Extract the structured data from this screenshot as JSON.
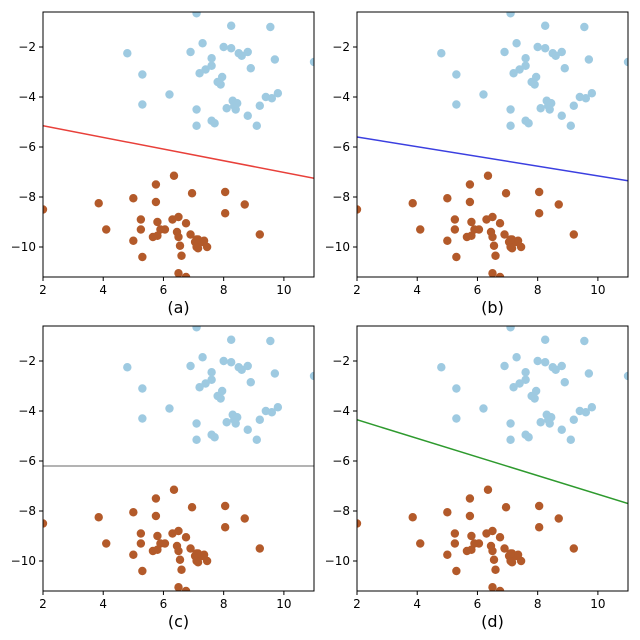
{
  "chart_data": [
    {
      "type": "scatter",
      "panel_label": "(a)",
      "xlim": [
        2,
        11
      ],
      "ylim": [
        -11.2,
        -0.6
      ],
      "xticks": [
        2,
        4,
        6,
        8,
        10
      ],
      "yticks": [
        -2,
        -4,
        -6,
        -8,
        -10
      ],
      "xtick_labels": [
        "2",
        "4",
        "6",
        "8",
        "10"
      ],
      "ytick_labels": [
        "−2",
        "−4",
        "−6",
        "−8",
        "−10"
      ],
      "grid": false,
      "boundary": {
        "x": [
          2,
          11
        ],
        "y": [
          -5.15,
          -7.25
        ],
        "color": "#e8403a"
      }
    },
    {
      "type": "scatter",
      "panel_label": "(b)",
      "xlim": [
        2,
        11
      ],
      "ylim": [
        -11.2,
        -0.6
      ],
      "xticks": [
        2,
        4,
        6,
        8,
        10
      ],
      "yticks": [
        -2,
        -4,
        -6,
        -8,
        -10
      ],
      "xtick_labels": [
        "2",
        "4",
        "6",
        "8",
        "10"
      ],
      "ytick_labels": [
        "−2",
        "−4",
        "−6",
        "−8",
        "−10"
      ],
      "grid": false,
      "boundary": {
        "x": [
          2,
          11
        ],
        "y": [
          -5.6,
          -7.35
        ],
        "color": "#3b3fe0"
      }
    },
    {
      "type": "scatter",
      "panel_label": "(c)",
      "xlim": [
        2,
        11
      ],
      "ylim": [
        -11.2,
        -0.6
      ],
      "xticks": [
        2,
        4,
        6,
        8,
        10
      ],
      "yticks": [
        -2,
        -4,
        -6,
        -8,
        -10
      ],
      "xtick_labels": [
        "2",
        "4",
        "6",
        "8",
        "10"
      ],
      "ytick_labels": [
        "−2",
        "−4",
        "−6",
        "−8",
        "−10"
      ],
      "grid": false,
      "boundary": {
        "x": [
          2,
          11
        ],
        "y": [
          -6.2,
          -6.2
        ],
        "color": "#9a9a9a"
      }
    },
    {
      "type": "scatter",
      "panel_label": "(d)",
      "xlim": [
        2,
        11
      ],
      "ylim": [
        -11.2,
        -0.6
      ],
      "xticks": [
        2,
        4,
        6,
        8,
        10
      ],
      "yticks": [
        -2,
        -4,
        -6,
        -8,
        -10
      ],
      "xtick_labels": [
        "2",
        "4",
        "6",
        "8",
        "10"
      ],
      "ytick_labels": [
        "−2",
        "−4",
        "−6",
        "−8",
        "−10"
      ],
      "grid": false,
      "boundary": {
        "x": [
          2,
          11
        ],
        "y": [
          -4.35,
          -7.7
        ],
        "color": "#2e9a2e"
      }
    }
  ],
  "shared_points": {
    "cluster_upper": {
      "color": "#9ecae1",
      "points": [
        [
          4.8,
          -2.25
        ],
        [
          5.3,
          -3.1
        ],
        [
          5.3,
          -4.3
        ],
        [
          6.2,
          -3.9
        ],
        [
          6.9,
          -2.2
        ],
        [
          7.1,
          -0.65
        ],
        [
          7.3,
          -1.85
        ],
        [
          7.2,
          -3.05
        ],
        [
          7.4,
          -2.9
        ],
        [
          7.6,
          -2.45
        ],
        [
          7.6,
          -2.75
        ],
        [
          7.8,
          -3.4
        ],
        [
          7.9,
          -3.5
        ],
        [
          7.95,
          -3.2
        ],
        [
          8.0,
          -2.0
        ],
        [
          8.25,
          -2.05
        ],
        [
          8.25,
          -1.15
        ],
        [
          8.3,
          -4.15
        ],
        [
          8.35,
          -4.35
        ],
        [
          8.4,
          -4.5
        ],
        [
          8.45,
          -4.25
        ],
        [
          8.5,
          -2.25
        ],
        [
          8.6,
          -2.35
        ],
        [
          8.8,
          -2.2
        ],
        [
          8.8,
          -4.75
        ],
        [
          8.9,
          -2.85
        ],
        [
          9.1,
          -5.15
        ],
        [
          9.2,
          -4.35
        ],
        [
          9.4,
          -4.0
        ],
        [
          9.55,
          -1.2
        ],
        [
          9.6,
          -4.05
        ],
        [
          9.7,
          -2.5
        ],
        [
          9.8,
          -3.85
        ],
        [
          11.0,
          -2.6
        ],
        [
          7.1,
          -4.5
        ],
        [
          7.1,
          -5.15
        ],
        [
          7.6,
          -4.95
        ],
        [
          7.7,
          -5.05
        ],
        [
          8.1,
          -4.45
        ]
      ]
    },
    "cluster_lower": {
      "color": "#b35a2a",
      "points": [
        [
          2.0,
          -8.5
        ],
        [
          3.85,
          -8.25
        ],
        [
          4.1,
          -9.3
        ],
        [
          5.0,
          -8.05
        ],
        [
          5.0,
          -9.75
        ],
        [
          5.25,
          -8.9
        ],
        [
          5.25,
          -9.3
        ],
        [
          5.3,
          -10.4
        ],
        [
          5.65,
          -9.6
        ],
        [
          5.8,
          -9.55
        ],
        [
          5.75,
          -7.5
        ],
        [
          5.75,
          -8.2
        ],
        [
          5.8,
          -9.0
        ],
        [
          5.9,
          -9.3
        ],
        [
          6.05,
          -9.3
        ],
        [
          6.3,
          -8.9
        ],
        [
          6.35,
          -7.15
        ],
        [
          6.45,
          -9.4
        ],
        [
          6.5,
          -9.6
        ],
        [
          6.5,
          -8.8
        ],
        [
          6.5,
          -11.05
        ],
        [
          6.55,
          -9.95
        ],
        [
          6.6,
          -10.35
        ],
        [
          6.75,
          -9.05
        ],
        [
          6.75,
          -11.2
        ],
        [
          6.9,
          -9.5
        ],
        [
          6.95,
          -7.85
        ],
        [
          7.05,
          -9.8
        ],
        [
          7.1,
          -10.0
        ],
        [
          7.15,
          -9.7
        ],
        [
          7.15,
          -10.05
        ],
        [
          7.3,
          -9.8
        ],
        [
          7.45,
          -10.0
        ],
        [
          7.35,
          -9.75
        ],
        [
          8.05,
          -7.8
        ],
        [
          8.05,
          -8.65
        ],
        [
          8.7,
          -8.3
        ],
        [
          9.2,
          -9.5
        ],
        [
          7.1,
          -9.7
        ]
      ]
    }
  }
}
